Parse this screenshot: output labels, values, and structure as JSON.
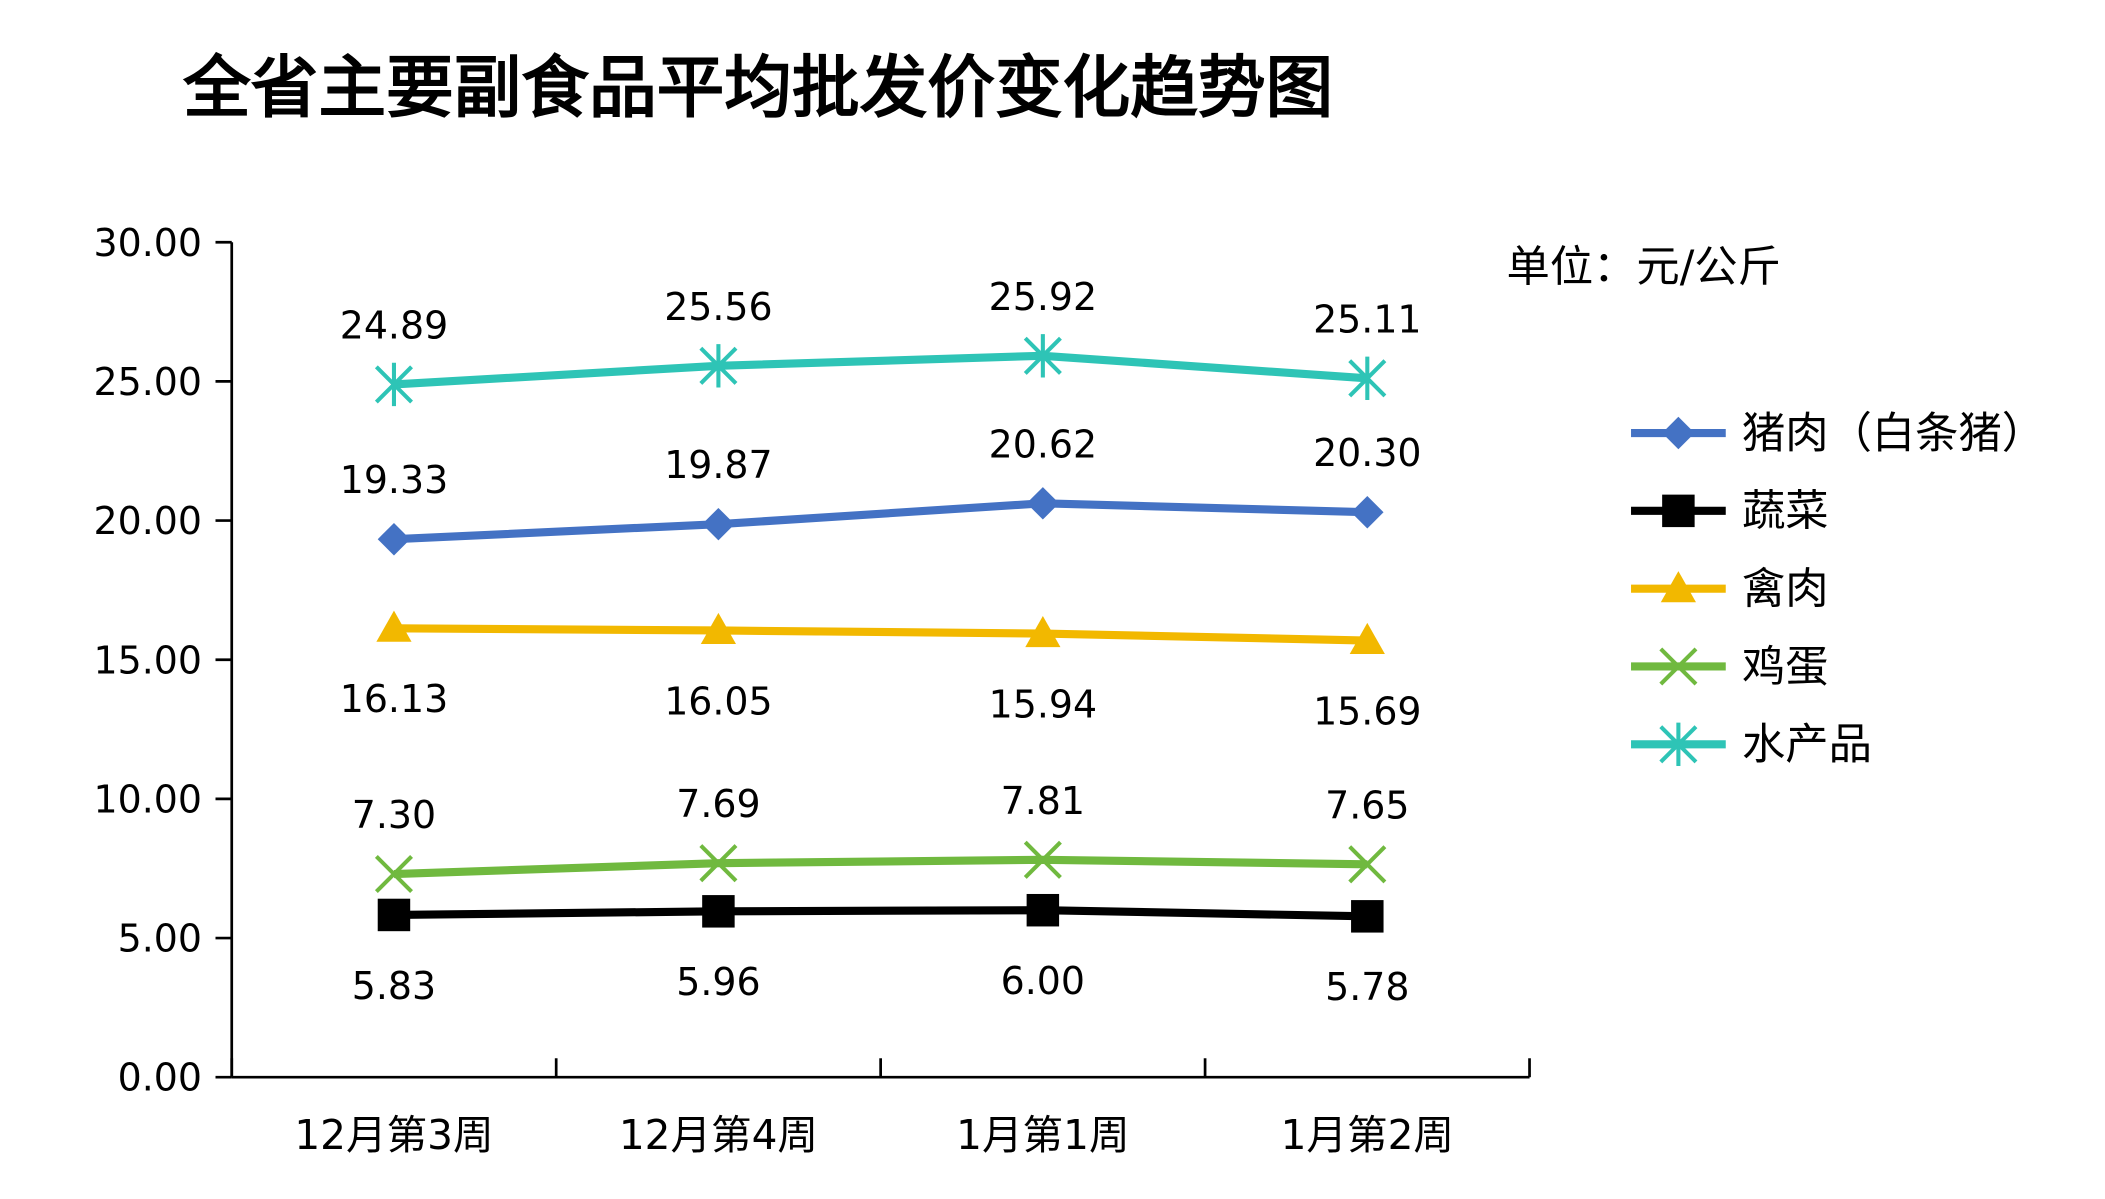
{
  "chart_data": {
    "type": "line",
    "title": "全省主要副食品平均批发价变化趋势图",
    "unit_label": "单位：元/公斤",
    "xlabel": "",
    "ylabel": "",
    "ylim": [
      0,
      30
    ],
    "yticks": [
      "0.00",
      "5.00",
      "10.00",
      "15.00",
      "20.00",
      "25.00",
      "30.00"
    ],
    "categories": [
      "12月第3周",
      "12月第4周",
      "1月第1周",
      "1月第2周"
    ],
    "grid": false,
    "legend_position": "right",
    "series": [
      {
        "name": "猪肉（白条猪）",
        "values": [
          19.33,
          19.87,
          20.62,
          20.3
        ],
        "labels": [
          "19.33",
          "19.87",
          "20.62",
          "20.30"
        ],
        "color": "#4472C4",
        "marker": "diamond",
        "label_pos": "above"
      },
      {
        "name": "蔬菜",
        "values": [
          5.83,
          5.96,
          6.0,
          5.78
        ],
        "labels": [
          "5.83",
          "5.96",
          "6.00",
          "5.78"
        ],
        "color": "#000000",
        "marker": "square",
        "label_pos": "below"
      },
      {
        "name": "禽肉",
        "values": [
          16.13,
          16.05,
          15.94,
          15.69
        ],
        "labels": [
          "16.13",
          "16.05",
          "15.94",
          "15.69"
        ],
        "color": "#F2B800",
        "marker": "triangle",
        "label_pos": "below"
      },
      {
        "name": "鸡蛋",
        "values": [
          7.3,
          7.69,
          7.81,
          7.65
        ],
        "labels": [
          "7.30",
          "7.69",
          "7.81",
          "7.65"
        ],
        "color": "#70B93F",
        "marker": "x",
        "label_pos": "above"
      },
      {
        "name": "水产品",
        "values": [
          24.89,
          25.56,
          25.92,
          25.11
        ],
        "labels": [
          "24.89",
          "25.56",
          "25.92",
          "25.11"
        ],
        "color": "#2EC4B6",
        "marker": "star",
        "label_pos": "above"
      }
    ]
  }
}
